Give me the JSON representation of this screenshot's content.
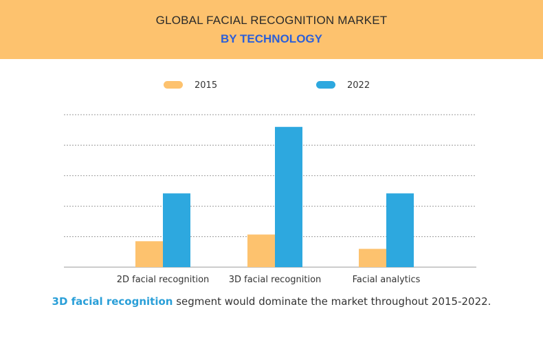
{
  "header": {
    "title": "GLOBAL FACIAL RECOGNITION MARKET",
    "subtitle": "BY TECHNOLOGY"
  },
  "caption": {
    "highlight": "3D facial recognition",
    "rest": " segment would dominate the market throughout 2015-2022."
  },
  "colors": {
    "banner": "#fdc26e",
    "series_2015": "#fdc26e",
    "series_2022": "#2da8df",
    "subtitle": "#2c5fd8",
    "caption_highlight": "#2a9fd8"
  },
  "chart_data": {
    "type": "bar",
    "categories": [
      "2D facial recognition",
      "3D facial recognition",
      "Facial analytics"
    ],
    "series": [
      {
        "name": "2015",
        "values": [
          8.5,
          10.7,
          6.0
        ]
      },
      {
        "name": "2022",
        "values": [
          24.2,
          46.0,
          24.2
        ]
      }
    ],
    "ylim": [
      0,
      50
    ],
    "grid": true,
    "legend_position": "top",
    "y_tick_labels_shown": false
  }
}
